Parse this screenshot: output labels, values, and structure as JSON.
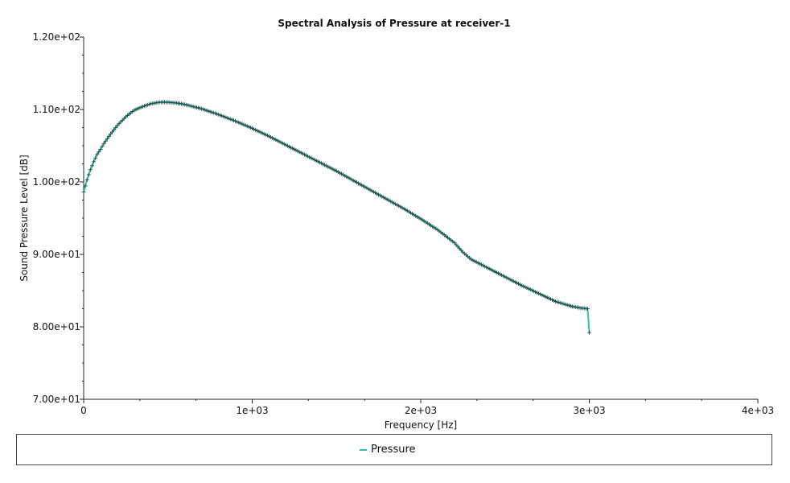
{
  "colors": {
    "series": "#2ec4a6",
    "marker": "#1f4f4a",
    "axis": "#222222",
    "background": "#ffffff"
  },
  "chart_data": {
    "type": "line",
    "title": "Spectral Analysis of Pressure at receiver-1",
    "xlabel": "Frequency [Hz]",
    "ylabel": "Sound Pressure Level [dB]",
    "xlim": [
      0,
      4000
    ],
    "ylim": [
      70,
      120
    ],
    "x_ticks": [
      0,
      1000,
      2000,
      3000,
      4000
    ],
    "x_tick_labels": [
      "0",
      "1e+03",
      "2e+03",
      "3e+03",
      "4e+03"
    ],
    "y_ticks": [
      70,
      80,
      90,
      100,
      110,
      120
    ],
    "y_tick_labels": [
      "7.00e+01",
      "8.00e+01",
      "9.00e+01",
      "1.00e+02",
      "1.10e+02",
      "1.20e+02"
    ],
    "legend": "bottom",
    "grid": false,
    "series": [
      {
        "name": "Pressure",
        "x": [
          0,
          20,
          40,
          60,
          80,
          100,
          120,
          150,
          200,
          250,
          300,
          350,
          400,
          450,
          500,
          550,
          600,
          700,
          800,
          900,
          1000,
          1100,
          1200,
          1300,
          1400,
          1500,
          1600,
          1700,
          1800,
          1900,
          2000,
          2100,
          2200,
          2250,
          2300,
          2400,
          2500,
          2600,
          2700,
          2800,
          2900,
          2950,
          2990,
          3000
        ],
        "values": [
          98.6,
          100.3,
          101.7,
          102.8,
          103.8,
          104.5,
          105.3,
          106.3,
          107.8,
          109.0,
          109.9,
          110.4,
          110.8,
          111.0,
          111.0,
          110.9,
          110.7,
          110.1,
          109.3,
          108.4,
          107.4,
          106.3,
          105.1,
          103.9,
          102.7,
          101.5,
          100.2,
          98.9,
          97.6,
          96.3,
          94.9,
          93.4,
          91.6,
          90.3,
          89.3,
          88.1,
          86.9,
          85.7,
          84.6,
          83.5,
          82.8,
          82.6,
          82.5,
          79.2
        ]
      }
    ]
  }
}
